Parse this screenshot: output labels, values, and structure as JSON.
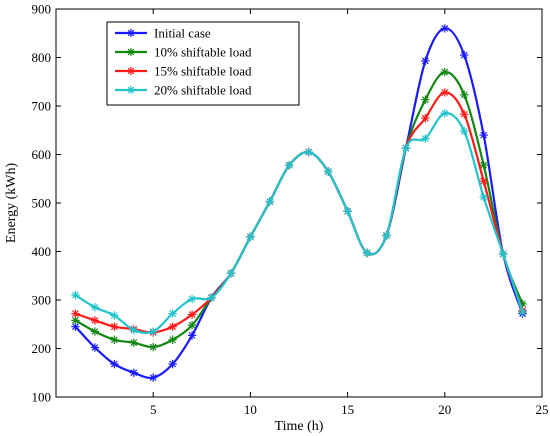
{
  "chart_data": {
    "type": "line",
    "xlabel": "Time (h)",
    "ylabel": "Energy (kWh)",
    "xlim": [
      0,
      25
    ],
    "ylim": [
      100,
      900
    ],
    "xticks": [
      5,
      10,
      15,
      20,
      25
    ],
    "yticks": [
      100,
      200,
      300,
      400,
      500,
      600,
      700,
      800,
      900
    ],
    "grid": false,
    "legend_position": "top-left",
    "x": [
      1,
      2,
      3,
      4,
      5,
      6,
      7,
      8,
      9,
      10,
      11,
      12,
      13,
      14,
      15,
      16,
      17,
      18,
      19,
      20,
      21,
      22,
      23,
      24
    ],
    "series": [
      {
        "name": "Initial case",
        "color": "#1a1aff",
        "marker": "asterisk",
        "values": [
          245,
          202,
          168,
          150,
          140,
          168,
          227,
          305,
          355,
          430,
          503,
          578,
          605,
          565,
          483,
          397,
          433,
          613,
          793,
          860,
          805,
          640,
          395,
          272
        ]
      },
      {
        "name": "10% shiftable load",
        "color": "#118811",
        "marker": "asterisk",
        "values": [
          258,
          235,
          218,
          212,
          203,
          218,
          248,
          305,
          355,
          430,
          503,
          578,
          605,
          565,
          483,
          397,
          433,
          613,
          713,
          770,
          723,
          578,
          395,
          292
        ]
      },
      {
        "name": "15% shiftable load",
        "color": "#ff1a1a",
        "marker": "asterisk",
        "values": [
          272,
          258,
          245,
          240,
          233,
          245,
          270,
          305,
          355,
          430,
          503,
          578,
          605,
          565,
          483,
          397,
          433,
          613,
          675,
          728,
          683,
          545,
          395,
          278
        ]
      },
      {
        "name": "20% shiftable load",
        "color": "#22c4cc",
        "marker": "asterisk",
        "values": [
          310,
          285,
          268,
          238,
          235,
          272,
          302,
          305,
          355,
          430,
          503,
          578,
          605,
          565,
          483,
          397,
          433,
          613,
          633,
          685,
          648,
          512,
          395,
          275
        ]
      }
    ]
  }
}
